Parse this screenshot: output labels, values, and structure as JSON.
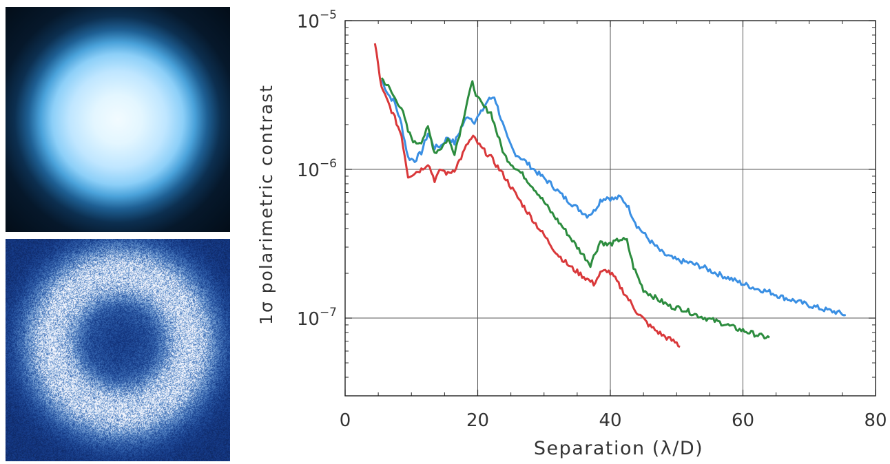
{
  "images": {
    "top_name": "intensity-image",
    "bottom_name": "polarized-intensity-image"
  },
  "chart_data": {
    "type": "line",
    "title": "",
    "xlabel": "Separation (λ/D)",
    "ylabel": "1σ polarimetric contrast",
    "xlim": [
      0,
      80
    ],
    "ylim": [
      3e-08,
      1e-05
    ],
    "y_scale": "log",
    "grid": true,
    "x_ticks": [
      0,
      20,
      40,
      60,
      80
    ],
    "y_ticks": [
      {
        "value": 1e-05,
        "label": "10",
        "exp": "−5"
      },
      {
        "value": 1e-06,
        "label": "10",
        "exp": "−6"
      },
      {
        "value": 1e-07,
        "label": "10",
        "exp": "−7"
      }
    ],
    "series": [
      {
        "color": "#3a8fe3",
        "points": [
          [
            5.5,
            4e-06
          ],
          [
            6.5,
            3.2e-06
          ],
          [
            7.5,
            2.8e-06
          ],
          [
            8.5,
            2e-06
          ],
          [
            9.5,
            1.2e-06
          ],
          [
            10.5,
            1.15e-06
          ],
          [
            11.5,
            1.3e-06
          ],
          [
            12.5,
            1.75e-06
          ],
          [
            13.5,
            1.4e-06
          ],
          [
            14.5,
            1.45e-06
          ],
          [
            15.5,
            1.65e-06
          ],
          [
            16.5,
            1.5e-06
          ],
          [
            17.5,
            1.9e-06
          ],
          [
            18.5,
            2.3e-06
          ],
          [
            19.5,
            2.1e-06
          ],
          [
            20.5,
            2.4e-06
          ],
          [
            21.5,
            2.9e-06
          ],
          [
            22.5,
            3.1e-06
          ],
          [
            23.5,
            2.2e-06
          ],
          [
            24.5,
            1.6e-06
          ],
          [
            25.5,
            1.3e-06
          ],
          [
            27,
            1.15e-06
          ],
          [
            29,
            9.5e-07
          ],
          [
            31,
            8e-07
          ],
          [
            33,
            6.5e-07
          ],
          [
            35,
            5.5e-07
          ],
          [
            36.5,
            4.9e-07
          ],
          [
            37.5,
            5.2e-07
          ],
          [
            38.5,
            6.2e-07
          ],
          [
            39.5,
            6.5e-07
          ],
          [
            40.5,
            6.3e-07
          ],
          [
            41.5,
            6.5e-07
          ],
          [
            42.5,
            5.8e-07
          ],
          [
            44,
            4.2e-07
          ],
          [
            46,
            3.3e-07
          ],
          [
            48,
            2.7e-07
          ],
          [
            50,
            2.45e-07
          ],
          [
            52,
            2.35e-07
          ],
          [
            54,
            2.2e-07
          ],
          [
            56,
            2e-07
          ],
          [
            58,
            1.85e-07
          ],
          [
            60,
            1.7e-07
          ],
          [
            62,
            1.58e-07
          ],
          [
            64,
            1.5e-07
          ],
          [
            66,
            1.38e-07
          ],
          [
            68,
            1.3e-07
          ],
          [
            70,
            1.22e-07
          ],
          [
            72,
            1.15e-07
          ],
          [
            74,
            1.1e-07
          ],
          [
            75.5,
            1.05e-07
          ]
        ]
      },
      {
        "color": "#2c8c3e",
        "points": [
          [
            5.5,
            4.1e-06
          ],
          [
            6.5,
            3.6e-06
          ],
          [
            7.5,
            3e-06
          ],
          [
            8.5,
            2.6e-06
          ],
          [
            9.5,
            1.8e-06
          ],
          [
            10.5,
            1.5e-06
          ],
          [
            11.5,
            1.55e-06
          ],
          [
            12.5,
            1.9e-06
          ],
          [
            13.5,
            1.3e-06
          ],
          [
            14.5,
            1.4e-06
          ],
          [
            15.5,
            1.6e-06
          ],
          [
            16.5,
            1.3e-06
          ],
          [
            17.5,
            1.9e-06
          ],
          [
            18.5,
            3e-06
          ],
          [
            19.2,
            3.8e-06
          ],
          [
            20,
            3e-06
          ],
          [
            21,
            2.6e-06
          ],
          [
            22,
            2.4e-06
          ],
          [
            23,
            1.7e-06
          ],
          [
            24,
            1.25e-06
          ],
          [
            25,
            1.1e-06
          ],
          [
            27,
            9e-07
          ],
          [
            29,
            7e-07
          ],
          [
            31,
            5.2e-07
          ],
          [
            33,
            4e-07
          ],
          [
            35,
            3e-07
          ],
          [
            37,
            2.3e-07
          ],
          [
            38.5,
            3.3e-07
          ],
          [
            39.5,
            3.1e-07
          ],
          [
            40.5,
            3.2e-07
          ],
          [
            41.5,
            3.4e-07
          ],
          [
            42.5,
            3.3e-07
          ],
          [
            43.5,
            2.2e-07
          ],
          [
            45,
            1.55e-07
          ],
          [
            47,
            1.35e-07
          ],
          [
            49,
            1.2e-07
          ],
          [
            51,
            1.15e-07
          ],
          [
            53,
            1.05e-07
          ],
          [
            55,
            9.8e-08
          ],
          [
            57,
            9.2e-08
          ],
          [
            59,
            8.5e-08
          ],
          [
            61,
            8e-08
          ],
          [
            63,
            7.5e-08
          ],
          [
            64,
            7.4e-08
          ]
        ]
      },
      {
        "color": "#d9383a",
        "points": [
          [
            4.5,
            7e-06
          ],
          [
            5,
            5e-06
          ],
          [
            5.5,
            3.5e-06
          ],
          [
            6.5,
            2.8e-06
          ],
          [
            7.5,
            2.2e-06
          ],
          [
            8.5,
            1.7e-06
          ],
          [
            9.5,
            9e-07
          ],
          [
            10.5,
            9.5e-07
          ],
          [
            11.5,
            1e-06
          ],
          [
            12.5,
            1.1e-06
          ],
          [
            13.5,
            8.5e-07
          ],
          [
            14.5,
            1e-06
          ],
          [
            15.5,
            9.3e-07
          ],
          [
            16.5,
            1e-06
          ],
          [
            17.5,
            1.2e-06
          ],
          [
            18.5,
            1.5e-06
          ],
          [
            19.3,
            1.65e-06
          ],
          [
            20.5,
            1.4e-06
          ],
          [
            22,
            1.2e-06
          ],
          [
            24,
            9e-07
          ],
          [
            26,
            6.5e-07
          ],
          [
            28,
            4.8e-07
          ],
          [
            30,
            3.6e-07
          ],
          [
            32,
            2.7e-07
          ],
          [
            34,
            2.2e-07
          ],
          [
            36,
            1.9e-07
          ],
          [
            37.5,
            1.7e-07
          ],
          [
            38.5,
            2e-07
          ],
          [
            39.5,
            2.1e-07
          ],
          [
            40.5,
            1.9e-07
          ],
          [
            42,
            1.5e-07
          ],
          [
            44,
            1.1e-07
          ],
          [
            46,
            8.8e-08
          ],
          [
            48,
            7.6e-08
          ],
          [
            50,
            6.8e-08
          ],
          [
            50.5,
            6.4e-08
          ]
        ]
      }
    ]
  }
}
